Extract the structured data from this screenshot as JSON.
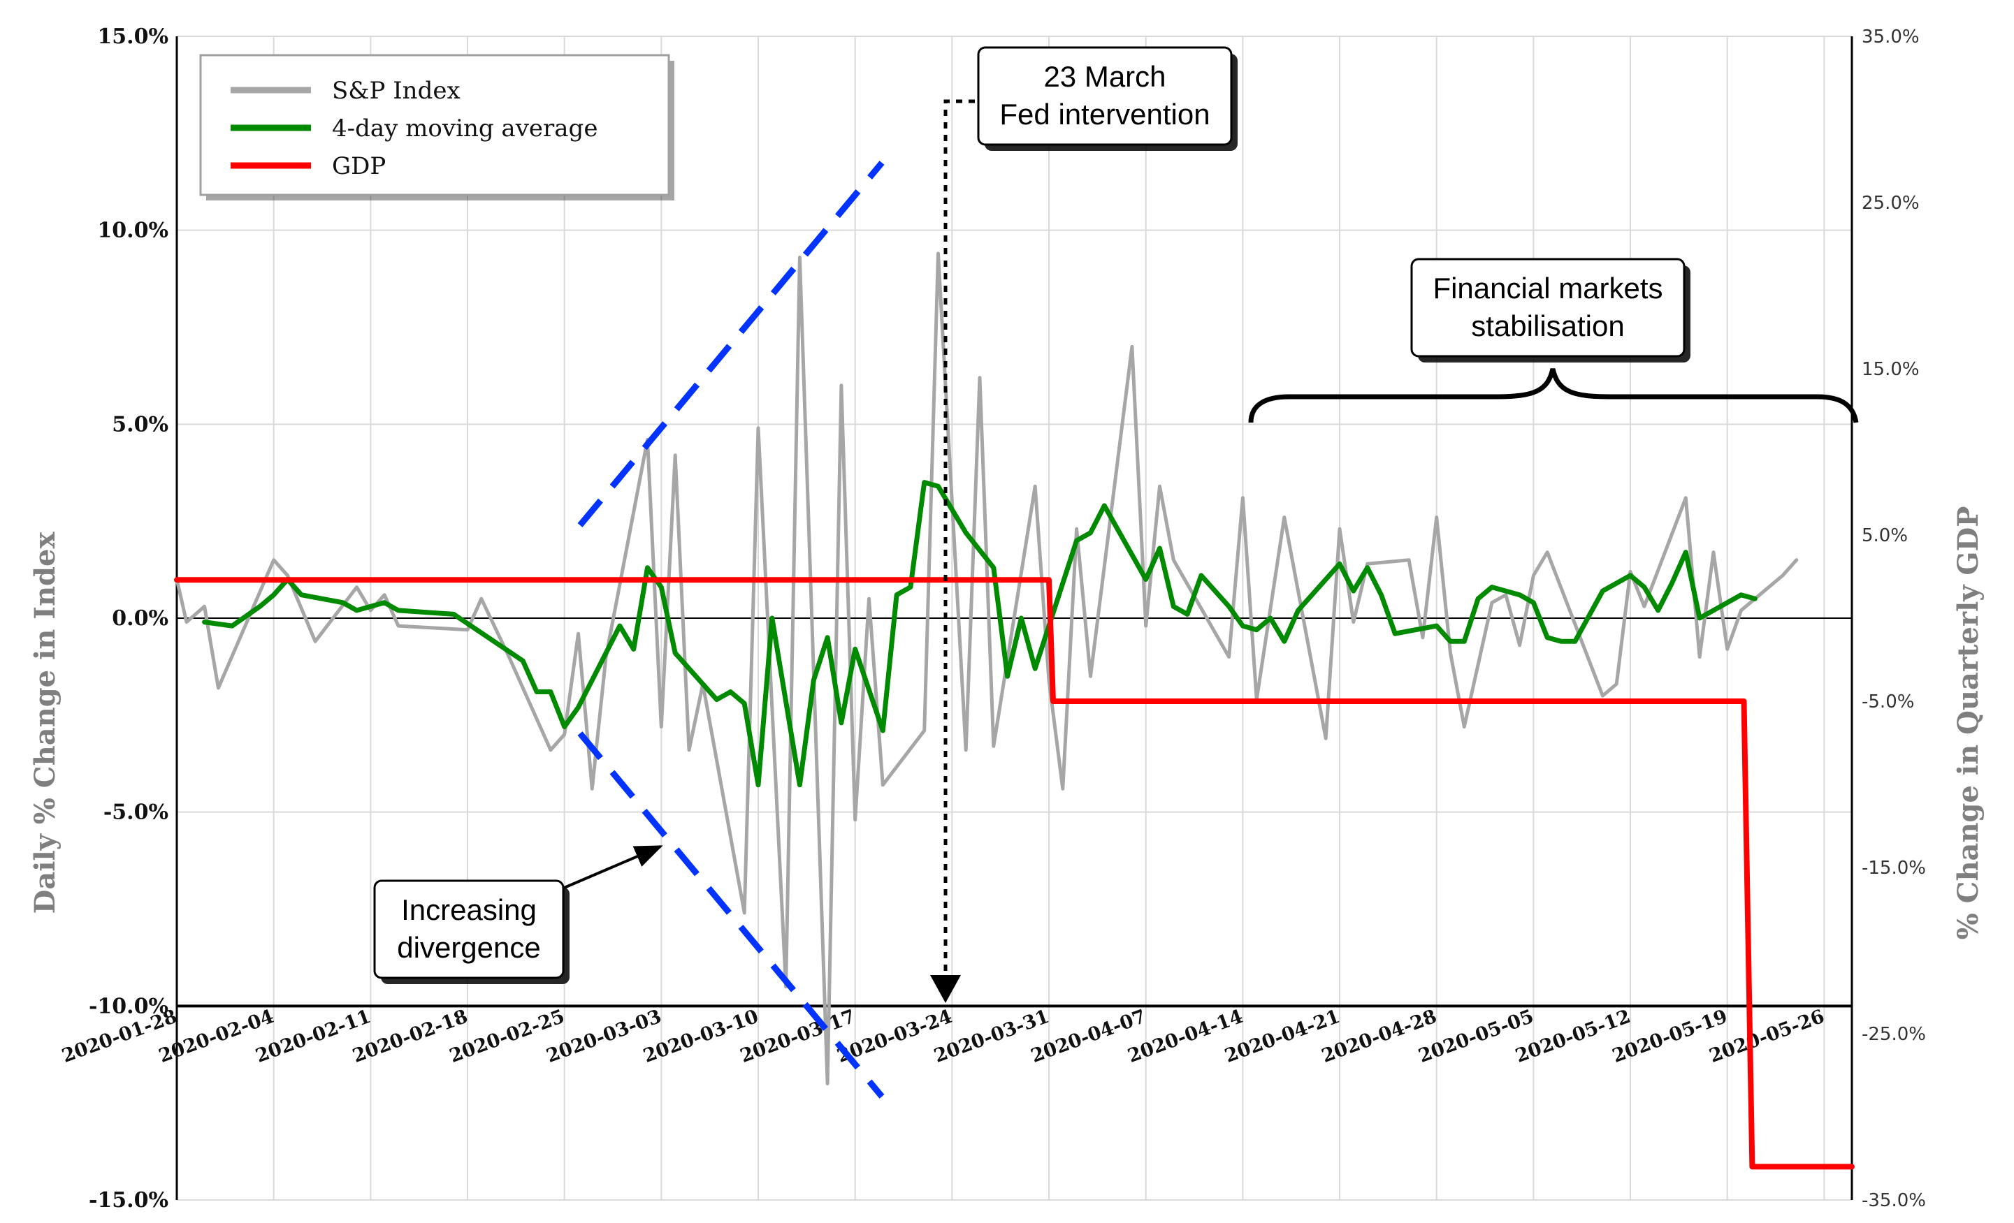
{
  "chart_data": {
    "type": "line",
    "xlabel": "",
    "ylabel": "Daily % Change in Index",
    "y2label": "% Change in Quarterly GDP",
    "ylim": [
      -15,
      15
    ],
    "y2lim": [
      -35,
      35
    ],
    "yticks": [
      {
        "v": 15,
        "label": "15.0%"
      },
      {
        "v": 10,
        "label": "10.0%"
      },
      {
        "v": 5,
        "label": "5.0%"
      },
      {
        "v": 0,
        "label": "0.0%"
      },
      {
        "v": -5,
        "label": "-5.0%"
      },
      {
        "v": -10,
        "label": "-10.0%"
      },
      {
        "v": -15,
        "label": "-15.0%"
      }
    ],
    "y2ticks": [
      {
        "v": 35,
        "label": "35.0%"
      },
      {
        "v": 25,
        "label": "25.0%"
      },
      {
        "v": 15,
        "label": "15.0%"
      },
      {
        "v": 5,
        "label": "5.0%"
      },
      {
        "v": -5,
        "label": "-5.0%"
      },
      {
        "v": -15,
        "label": "-15.0%"
      },
      {
        "v": -25,
        "label": "-25.0%"
      },
      {
        "v": -35,
        "label": "-35.0%"
      }
    ],
    "xlim": [
      0,
      121
    ],
    "xticks": [
      {
        "d": 0,
        "label": "2020-01-28"
      },
      {
        "d": 7,
        "label": "2020-02-04"
      },
      {
        "d": 14,
        "label": "2020-02-11"
      },
      {
        "d": 21,
        "label": "2020-02-18"
      },
      {
        "d": 28,
        "label": "2020-02-25"
      },
      {
        "d": 35,
        "label": "2020-03-03"
      },
      {
        "d": 42,
        "label": "2020-03-10"
      },
      {
        "d": 49,
        "label": "2020-03-17"
      },
      {
        "d": 56,
        "label": "2020-03-24"
      },
      {
        "d": 63,
        "label": "2020-03-31"
      },
      {
        "d": 70,
        "label": "2020-04-07"
      },
      {
        "d": 77,
        "label": "2020-04-14"
      },
      {
        "d": 84,
        "label": "2020-04-21"
      },
      {
        "d": 91,
        "label": "2020-04-28"
      },
      {
        "d": 98,
        "label": "2020-05-05"
      },
      {
        "d": 105,
        "label": "2020-05-12"
      },
      {
        "d": 112,
        "label": "2020-05-19"
      },
      {
        "d": 119,
        "label": "2020-05-26"
      }
    ],
    "series": [
      {
        "name": "S&P Index",
        "color": "#a6a6a6",
        "axis": "left",
        "points": [
          [
            0,
            1.0
          ],
          [
            0.7,
            -0.1
          ],
          [
            2,
            0.3
          ],
          [
            3,
            -1.8
          ],
          [
            7,
            1.5
          ],
          [
            8,
            1.1
          ],
          [
            10,
            -0.6
          ],
          [
            13,
            0.8
          ],
          [
            14,
            0.2
          ],
          [
            15,
            0.6
          ],
          [
            16,
            -0.2
          ],
          [
            21,
            -0.3
          ],
          [
            22,
            0.5
          ],
          [
            24,
            -1.0
          ],
          [
            27,
            -3.4
          ],
          [
            28,
            -3.0
          ],
          [
            29,
            -0.4
          ],
          [
            30,
            -4.4
          ],
          [
            31,
            -1.0
          ],
          [
            34,
            4.6
          ],
          [
            35,
            -2.8
          ],
          [
            36,
            4.2
          ],
          [
            37,
            -3.4
          ],
          [
            38,
            -1.7
          ],
          [
            41,
            -7.6
          ],
          [
            42,
            4.9
          ],
          [
            44,
            -9.5
          ],
          [
            45,
            9.3
          ],
          [
            47,
            -12.0
          ],
          [
            48,
            6.0
          ],
          [
            49,
            -5.2
          ],
          [
            50,
            0.5
          ],
          [
            51,
            -4.3
          ],
          [
            54,
            -2.9
          ],
          [
            55,
            9.4
          ],
          [
            57,
            -3.4
          ],
          [
            58,
            6.2
          ],
          [
            59,
            -3.3
          ],
          [
            62,
            3.4
          ],
          [
            63,
            -1.6
          ],
          [
            64,
            -4.4
          ],
          [
            65,
            2.3
          ],
          [
            66,
            -1.5
          ],
          [
            69,
            7.0
          ],
          [
            70,
            -0.2
          ],
          [
            71,
            3.4
          ],
          [
            72,
            1.5
          ],
          [
            76,
            -1.0
          ],
          [
            77,
            3.1
          ],
          [
            78,
            -2.1
          ],
          [
            80,
            2.6
          ],
          [
            83,
            -3.1
          ],
          [
            84,
            2.3
          ],
          [
            85,
            -0.1
          ],
          [
            86,
            1.4
          ],
          [
            89,
            1.5
          ],
          [
            90,
            -0.5
          ],
          [
            91,
            2.6
          ],
          [
            92,
            -0.9
          ],
          [
            93,
            -2.8
          ],
          [
            95,
            0.4
          ],
          [
            96,
            0.6
          ],
          [
            97,
            -0.7
          ],
          [
            98,
            1.1
          ],
          [
            99,
            1.7
          ],
          [
            103,
            -2.0
          ],
          [
            104,
            -1.7
          ],
          [
            105,
            1.2
          ],
          [
            106,
            0.3
          ],
          [
            109,
            3.1
          ],
          [
            110,
            -1.0
          ],
          [
            111,
            1.7
          ],
          [
            112,
            -0.8
          ],
          [
            113,
            0.2
          ],
          [
            116,
            1.1
          ],
          [
            117,
            1.5
          ]
        ]
      },
      {
        "name": "4-day moving average",
        "color": "#008a00",
        "axis": "left",
        "points": [
          [
            2,
            -0.1
          ],
          [
            4,
            -0.2
          ],
          [
            6,
            0.3
          ],
          [
            7,
            0.6
          ],
          [
            8,
            1.0
          ],
          [
            9,
            0.6
          ],
          [
            12,
            0.4
          ],
          [
            13,
            0.2
          ],
          [
            15,
            0.4
          ],
          [
            16,
            0.2
          ],
          [
            20,
            0.1
          ],
          [
            25,
            -1.1
          ],
          [
            26,
            -1.9
          ],
          [
            27,
            -1.9
          ],
          [
            28,
            -2.8
          ],
          [
            29,
            -2.3
          ],
          [
            32,
            -0.2
          ],
          [
            33,
            -0.8
          ],
          [
            34,
            1.3
          ],
          [
            35,
            0.8
          ],
          [
            36,
            -0.9
          ],
          [
            39,
            -2.1
          ],
          [
            40,
            -1.9
          ],
          [
            41,
            -2.2
          ],
          [
            42,
            -4.3
          ],
          [
            43,
            0.0
          ],
          [
            45,
            -4.3
          ],
          [
            46,
            -1.6
          ],
          [
            47,
            -0.5
          ],
          [
            48,
            -2.7
          ],
          [
            49,
            -0.8
          ],
          [
            51,
            -2.9
          ],
          [
            52,
            0.6
          ],
          [
            53,
            0.8
          ],
          [
            54,
            3.5
          ],
          [
            55,
            3.4
          ],
          [
            57,
            2.2
          ],
          [
            59,
            1.3
          ],
          [
            60,
            -1.5
          ],
          [
            61,
            0.0
          ],
          [
            62,
            -1.3
          ],
          [
            64,
            0.9
          ],
          [
            65,
            2.0
          ],
          [
            66,
            2.2
          ],
          [
            67,
            2.9
          ],
          [
            70,
            1.0
          ],
          [
            71,
            1.8
          ],
          [
            72,
            0.3
          ],
          [
            73,
            0.1
          ],
          [
            74,
            1.1
          ],
          [
            76,
            0.3
          ],
          [
            77,
            -0.2
          ],
          [
            78,
            -0.3
          ],
          [
            79,
            0.0
          ],
          [
            80,
            -0.6
          ],
          [
            81,
            0.2
          ],
          [
            84,
            1.4
          ],
          [
            85,
            0.7
          ],
          [
            86,
            1.3
          ],
          [
            87,
            0.6
          ],
          [
            88,
            -0.4
          ],
          [
            91,
            -0.2
          ],
          [
            92,
            -0.6
          ],
          [
            93,
            -0.6
          ],
          [
            94,
            0.5
          ],
          [
            95,
            0.8
          ],
          [
            97,
            0.6
          ],
          [
            98,
            0.4
          ],
          [
            99,
            -0.5
          ],
          [
            100,
            -0.6
          ],
          [
            101,
            -0.6
          ],
          [
            103,
            0.7
          ],
          [
            105,
            1.1
          ],
          [
            106,
            0.8
          ],
          [
            107,
            0.2
          ],
          [
            108,
            0.9
          ],
          [
            109,
            1.7
          ],
          [
            110,
            0.0
          ],
          [
            113,
            0.6
          ],
          [
            114,
            0.5
          ]
        ]
      },
      {
        "name": "GDP",
        "color": "#ff0000",
        "axis": "right",
        "points": [
          [
            0,
            2.3
          ],
          [
            63,
            2.3
          ],
          [
            63.3,
            -5.0
          ],
          [
            113.2,
            -5.0
          ],
          [
            113.8,
            -33.0
          ],
          [
            121,
            -33.0
          ]
        ]
      }
    ],
    "legend": {
      "position": "top-left",
      "items": [
        "S&P Index",
        "4-day moving average",
        "GDP"
      ]
    },
    "annotations": [
      {
        "lines": [
          "23 March",
          "Fed intervention"
        ],
        "arrow": "dotted vertical down at 2020-03-23"
      },
      {
        "lines": [
          "Financial markets",
          "stabilisation"
        ],
        "bracket": "curly brace from 2020-04-14 to 2020-05-28"
      },
      {
        "lines": [
          "Increasing",
          "divergence"
        ],
        "arrow": "points to widening blue dashed funnel"
      }
    ]
  }
}
